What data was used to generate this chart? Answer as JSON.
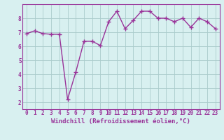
{
  "x": [
    0,
    1,
    2,
    3,
    4,
    5,
    6,
    7,
    8,
    9,
    10,
    11,
    12,
    13,
    14,
    15,
    16,
    17,
    18,
    19,
    20,
    21,
    22,
    23
  ],
  "y": [
    6.9,
    7.1,
    6.9,
    6.85,
    6.85,
    2.2,
    4.15,
    6.35,
    6.35,
    6.05,
    7.75,
    8.5,
    7.25,
    7.85,
    8.5,
    8.5,
    8.0,
    8.0,
    7.75,
    8.0,
    7.35,
    8.0,
    7.75,
    7.25
  ],
  "line_color": "#993399",
  "marker": "+",
  "markersize": 4,
  "linewidth": 1.0,
  "bg_color": "#d8f0f0",
  "grid_color": "#aacccc",
  "xlabel": "Windchill (Refroidissement éolien,°C)",
  "xlabel_color": "#993399",
  "xlim": [
    -0.5,
    23.5
  ],
  "ylim": [
    1.5,
    9.0
  ],
  "yticks": [
    2,
    3,
    4,
    5,
    6,
    7,
    8
  ],
  "xticks": [
    0,
    1,
    2,
    3,
    4,
    5,
    6,
    7,
    8,
    9,
    10,
    11,
    12,
    13,
    14,
    15,
    16,
    17,
    18,
    19,
    20,
    21,
    22,
    23
  ],
  "tick_color": "#993399",
  "spine_color": "#993399",
  "xlabel_fontsize": 6.5,
  "tick_fontsize": 5.5,
  "markeredgewidth": 1.0
}
